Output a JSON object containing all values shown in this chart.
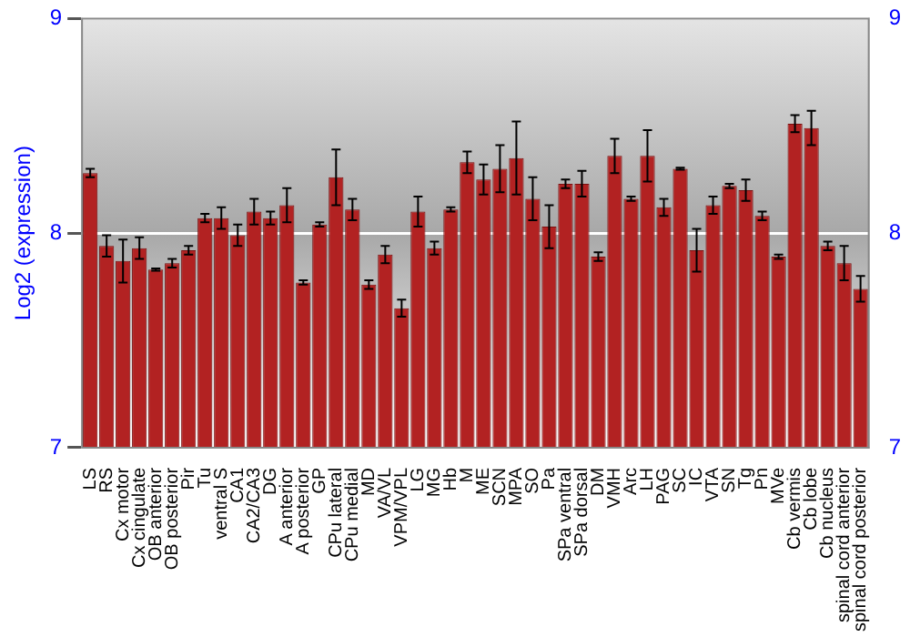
{
  "chart_data": {
    "type": "bar",
    "ylabel": "Log2 (expression)",
    "categories": [
      "LS",
      "RS",
      "Cx motor",
      "Cx cingulate",
      "OB anterior",
      "OB posterior",
      "Pir",
      "Tu",
      "ventral S",
      "CA1",
      "CA2/CA3",
      "DG",
      "A anterior",
      "A posterior",
      "GP",
      "CPu lateral",
      "CPu medial",
      "MD",
      "VA/VL",
      "VPM/VPL",
      "LG",
      "MG",
      "Hb",
      "M",
      "ME",
      "SCN",
      "MPA",
      "SO",
      "Pa",
      "SPa ventral",
      "SPa dorsal",
      "DM",
      "VMH",
      "Arc",
      "LH",
      "PAG",
      "SC",
      "IC",
      "VTA",
      "SN",
      "Tg",
      "Pn",
      "MVe",
      "Cb vermis",
      "Cb lobe",
      "Cb nucleus",
      "spinal cord anterior",
      "spinal cord posterior"
    ],
    "values": [
      8.28,
      7.94,
      7.87,
      7.93,
      7.83,
      7.86,
      7.92,
      8.07,
      8.07,
      7.99,
      8.1,
      8.07,
      8.13,
      7.77,
      8.04,
      8.26,
      8.11,
      7.76,
      7.9,
      7.65,
      8.1,
      7.93,
      8.11,
      8.33,
      8.25,
      8.3,
      8.35,
      8.16,
      8.03,
      8.23,
      8.23,
      7.89,
      8.36,
      8.16,
      8.36,
      8.12,
      8.3,
      7.92,
      8.13,
      8.22,
      8.2,
      8.08,
      7.89,
      8.51,
      8.49,
      7.94,
      7.86,
      7.74
    ],
    "errors": [
      0.02,
      0.05,
      0.1,
      0.05,
      0.005,
      0.02,
      0.02,
      0.02,
      0.05,
      0.05,
      0.06,
      0.03,
      0.08,
      0.01,
      0.01,
      0.13,
      0.05,
      0.02,
      0.04,
      0.04,
      0.07,
      0.03,
      0.01,
      0.05,
      0.07,
      0.11,
      0.17,
      0.1,
      0.1,
      0.02,
      0.06,
      0.02,
      0.08,
      0.01,
      0.12,
      0.04,
      0.005,
      0.1,
      0.04,
      0.01,
      0.05,
      0.02,
      0.01,
      0.04,
      0.08,
      0.02,
      0.08,
      0.06
    ],
    "color": "#b22222",
    "ylim": [
      7,
      9
    ],
    "yticks": [
      7,
      8,
      9
    ],
    "y2lim": [
      7,
      9
    ],
    "y2ticks": [
      7,
      8,
      9
    ],
    "grid": "y",
    "legend": false
  }
}
